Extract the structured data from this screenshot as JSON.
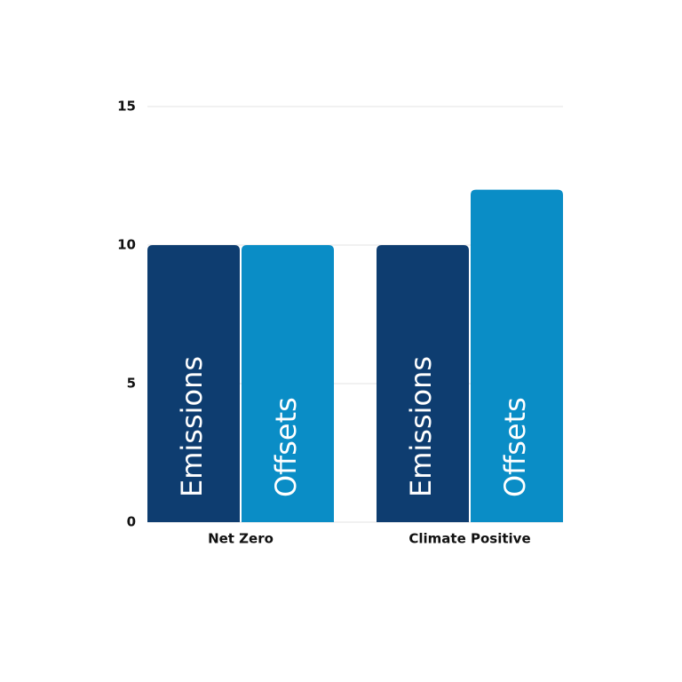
{
  "chart_data": {
    "type": "bar",
    "categories": [
      "Net Zero",
      "Climate Positive"
    ],
    "series": [
      {
        "name": "Emissions",
        "color": "#0e3d70",
        "values": [
          10,
          10
        ]
      },
      {
        "name": "Offsets",
        "color": "#0a8dc6",
        "values": [
          10,
          12
        ]
      }
    ],
    "ylim": [
      0,
      15
    ],
    "yticks": [
      0,
      5,
      10,
      15
    ],
    "grid": true
  }
}
